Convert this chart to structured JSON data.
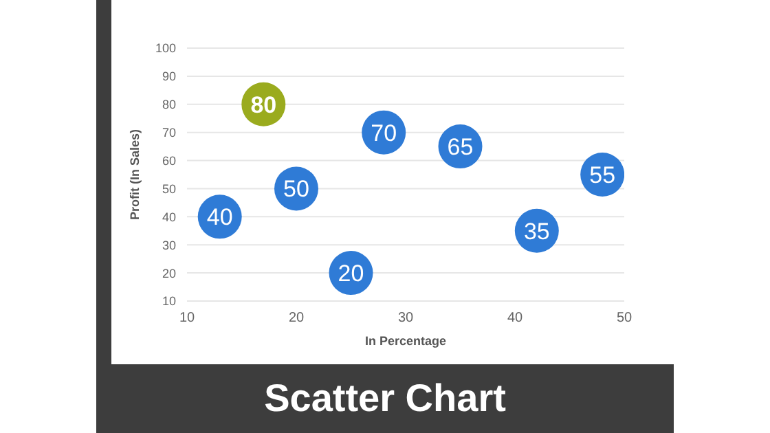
{
  "chart_data": {
    "type": "scatter",
    "title": "Scatter Chart",
    "xlabel": "In Percentage",
    "ylabel": "Profit  (In Sales)",
    "x": [
      13,
      17,
      20,
      25,
      28,
      35,
      42,
      48
    ],
    "values": [
      40,
      80,
      50,
      20,
      70,
      65,
      35,
      55
    ],
    "colors": [
      "#2f7bd6",
      "#9aab1e",
      "#2f7bd6",
      "#2f7bd6",
      "#2f7bd6",
      "#2f7bd6",
      "#2f7bd6",
      "#2f7bd6"
    ],
    "xlim": [
      10,
      50
    ],
    "xticks": [
      10,
      20,
      30,
      40,
      50
    ],
    "ylim": [
      10,
      100
    ],
    "yticks": [
      10,
      20,
      30,
      40,
      50,
      60,
      70,
      80,
      90,
      100
    ],
    "grid": "y",
    "data_labels": true,
    "marker": "circle"
  }
}
